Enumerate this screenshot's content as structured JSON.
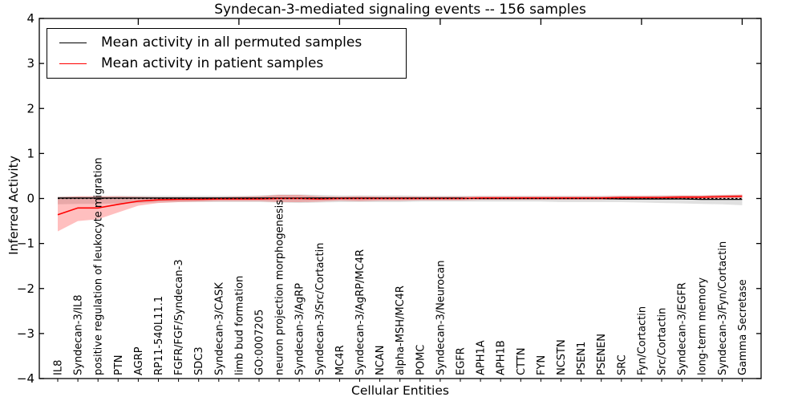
{
  "figure": {
    "title": "Syndecan-3-mediated signaling events -- 156 samples",
    "xlabel": "Cellular Entities",
    "ylabel": "Inferred Activity"
  },
  "chart_data": {
    "type": "line",
    "title": "Syndecan-3-mediated signaling events -- 156 samples",
    "xlabel": "Cellular Entities",
    "ylabel": "Inferred Activity",
    "ylim": [
      -4,
      4
    ],
    "yticks": [
      4,
      3,
      2,
      1,
      0,
      -1,
      -2,
      -3,
      -4
    ],
    "grid": false,
    "legend_position": "upper left",
    "zero_line": {
      "y": 0,
      "style": "dashed",
      "color": "#000000"
    },
    "categories": [
      "IL8",
      "Syndecan-3/IL8",
      "positive regulation of leukocyte migration",
      "PTN",
      "AGRP",
      "RP11-540L11.1",
      "FGFR/FGF/Syndecan-3",
      "SDC3",
      "Syndecan-3/CASK",
      "limb bud formation",
      "GO:0007205",
      "neuron projection morphogenesis",
      "Syndecan-3/AgRP",
      "Syndecan-3/Src/Cortactin",
      "MC4R",
      "Syndecan-3/AgRP/MC4R",
      "NCAN",
      "alpha-MSH/MC4R",
      "POMC",
      "Syndecan-3/Neurocan",
      "EGFR",
      "APH1A",
      "APH1B",
      "CTTN",
      "FYN",
      "NCSTN",
      "PSEN1",
      "PSENEN",
      "SRC",
      "Fyn/Cortactin",
      "Src/Cortactin",
      "Syndecan-3/EGFR",
      "long-term memory",
      "Syndecan-3/Fyn/Cortactin",
      "Gamma Secretase"
    ],
    "series": [
      {
        "name": "Mean activity in all permuted samples",
        "color": "#000000",
        "band_color": "#000000",
        "band_opacity": 0.12,
        "values": [
          0.01,
          0.01,
          0.01,
          0.01,
          0.01,
          0.01,
          0.01,
          0.01,
          0.01,
          0.01,
          0.01,
          0.01,
          0.01,
          0.01,
          0.01,
          0.01,
          0.01,
          0.01,
          0.01,
          0.01,
          0.01,
          0.0,
          0.0,
          0.0,
          0.0,
          0.0,
          0.0,
          0.0,
          -0.01,
          -0.01,
          -0.01,
          -0.01,
          -0.02,
          -0.02,
          -0.02
        ],
        "band_upper": [
          0.05,
          0.05,
          0.05,
          0.06,
          0.06,
          0.06,
          0.06,
          0.06,
          0.06,
          0.06,
          0.07,
          0.09,
          0.09,
          0.08,
          0.07,
          0.07,
          0.07,
          0.07,
          0.06,
          0.06,
          0.06,
          0.06,
          0.06,
          0.06,
          0.06,
          0.06,
          0.06,
          0.06,
          0.06,
          0.06,
          0.07,
          0.07,
          0.07,
          0.08,
          0.08
        ],
        "band_lower": [
          -0.13,
          -0.12,
          -0.12,
          -0.11,
          -0.1,
          -0.09,
          -0.08,
          -0.08,
          -0.08,
          -0.08,
          -0.08,
          -0.09,
          -0.1,
          -0.09,
          -0.08,
          -0.08,
          -0.08,
          -0.08,
          -0.07,
          -0.07,
          -0.07,
          -0.07,
          -0.07,
          -0.07,
          -0.07,
          -0.08,
          -0.08,
          -0.08,
          -0.08,
          -0.09,
          -0.1,
          -0.11,
          -0.12,
          -0.13,
          -0.15
        ]
      },
      {
        "name": "Mean activity in patient samples",
        "color": "#ff0000",
        "band_color": "#ff0000",
        "band_opacity": 0.25,
        "values": [
          -0.36,
          -0.21,
          -0.21,
          -0.13,
          -0.06,
          -0.03,
          -0.02,
          -0.02,
          -0.01,
          -0.01,
          -0.01,
          0.0,
          0.0,
          -0.01,
          0.0,
          0.0,
          0.0,
          0.0,
          0.0,
          0.0,
          0.0,
          0.01,
          0.01,
          0.01,
          0.01,
          0.01,
          0.01,
          0.01,
          0.02,
          0.02,
          0.02,
          0.03,
          0.03,
          0.04,
          0.05
        ],
        "band_upper": [
          0.03,
          0.05,
          0.05,
          0.05,
          0.04,
          0.03,
          0.03,
          0.03,
          0.03,
          0.04,
          0.05,
          0.08,
          0.08,
          0.05,
          0.04,
          0.05,
          0.04,
          0.04,
          0.04,
          0.04,
          0.04,
          0.05,
          0.05,
          0.05,
          0.05,
          0.05,
          0.05,
          0.05,
          0.06,
          0.06,
          0.06,
          0.07,
          0.07,
          0.08,
          0.09
        ],
        "band_lower": [
          -0.73,
          -0.5,
          -0.46,
          -0.31,
          -0.16,
          -0.1,
          -0.08,
          -0.07,
          -0.06,
          -0.06,
          -0.06,
          -0.08,
          -0.08,
          -0.07,
          -0.05,
          -0.06,
          -0.05,
          -0.05,
          -0.04,
          -0.04,
          -0.04,
          -0.03,
          -0.03,
          -0.03,
          -0.03,
          -0.03,
          -0.03,
          -0.03,
          -0.02,
          -0.02,
          -0.02,
          -0.01,
          -0.01,
          0.0,
          0.01
        ]
      }
    ]
  }
}
